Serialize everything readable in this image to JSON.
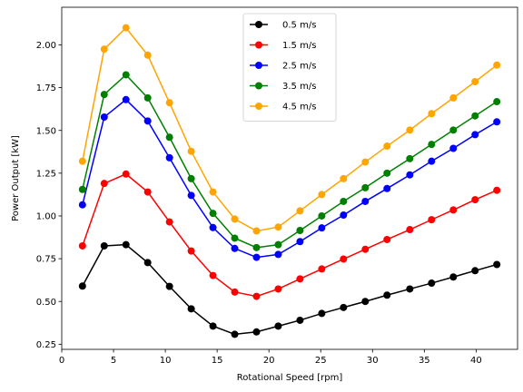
{
  "chart_data": {
    "type": "line",
    "title": "",
    "xlabel": "Rotational Speed [rpm]",
    "ylabel": "Power Output [kW]",
    "xlim": [
      0,
      44
    ],
    "ylim": [
      0.22,
      2.22
    ],
    "xticks": [
      0,
      5,
      10,
      15,
      20,
      25,
      30,
      35,
      40
    ],
    "xtick_labels": [
      "0",
      "5",
      "10",
      "15",
      "20",
      "25",
      "30",
      "35",
      "40"
    ],
    "yticks": [
      0.25,
      0.5,
      0.75,
      1.0,
      1.25,
      1.5,
      1.75,
      2.0
    ],
    "ytick_labels": [
      "0.25",
      "0.50",
      "0.75",
      "1.00",
      "1.25",
      "1.50",
      "1.75",
      "2.00"
    ],
    "grid": false,
    "legend_position": "top-center",
    "x": [
      2.0,
      4.1,
      6.2,
      8.3,
      10.4,
      12.5,
      14.6,
      16.7,
      18.8,
      20.9,
      23.0,
      25.1,
      27.2,
      29.3,
      31.4,
      33.6,
      35.7,
      37.8,
      39.9,
      42.0
    ],
    "series": [
      {
        "name": "0.5 m/s",
        "color": "#000000",
        "values": [
          0.59,
          0.825,
          0.832,
          0.727,
          0.588,
          0.457,
          0.356,
          0.308,
          0.322,
          0.356,
          0.39,
          0.43,
          0.465,
          0.5,
          0.537,
          0.573,
          0.607,
          0.643,
          0.68,
          0.716
        ]
      },
      {
        "name": "1.5 m/s",
        "color": "#ff0000",
        "values": [
          0.825,
          1.19,
          1.245,
          1.14,
          0.965,
          0.795,
          0.652,
          0.555,
          0.53,
          0.573,
          0.632,
          0.69,
          0.748,
          0.805,
          0.862,
          0.92,
          0.978,
          1.035,
          1.095,
          1.15
        ]
      },
      {
        "name": "2.5 m/s",
        "color": "#0000ff",
        "values": [
          1.065,
          1.578,
          1.68,
          1.555,
          1.34,
          1.12,
          0.932,
          0.81,
          0.758,
          0.775,
          0.85,
          0.93,
          1.005,
          1.085,
          1.16,
          1.24,
          1.32,
          1.395,
          1.475,
          1.55
        ]
      },
      {
        "name": "3.5 m/s",
        "color": "#008000",
        "values": [
          1.155,
          1.71,
          1.825,
          1.69,
          1.46,
          1.218,
          1.015,
          0.87,
          0.815,
          0.832,
          0.915,
          1.0,
          1.085,
          1.165,
          1.25,
          1.335,
          1.418,
          1.502,
          1.585,
          1.668
        ]
      },
      {
        "name": "4.5 m/s",
        "color": "#ffa500",
        "values": [
          1.32,
          1.975,
          2.1,
          1.94,
          1.662,
          1.378,
          1.14,
          0.982,
          0.912,
          0.935,
          1.03,
          1.125,
          1.218,
          1.315,
          1.408,
          1.502,
          1.598,
          1.69,
          1.785,
          1.882
        ]
      }
    ]
  }
}
